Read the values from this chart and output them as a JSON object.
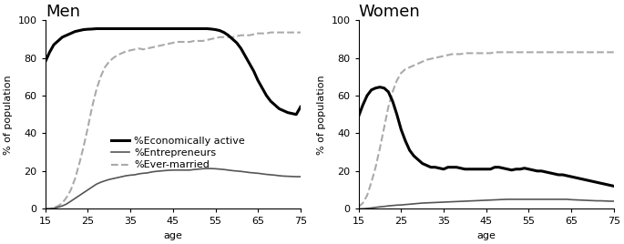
{
  "title_men": "Men",
  "title_women": "Women",
  "ylabel": "% of population",
  "xlabel": "age",
  "xlim": [
    15,
    75
  ],
  "ylim": [
    0,
    100
  ],
  "xticks": [
    15,
    25,
    35,
    45,
    55,
    65,
    75
  ],
  "yticks": [
    0,
    20,
    40,
    60,
    80,
    100
  ],
  "legend_labels": [
    "%Economically active",
    "%Entrepreneurs",
    "%Ever-married"
  ],
  "line_colors_econ": "black",
  "line_colors_entrep": "#555555",
  "line_colors_married": "#aaaaaa",
  "lw_econ": 2.2,
  "lw_entrep": 1.2,
  "lw_married": 1.5,
  "men_econ_active_ages": [
    15,
    16,
    17,
    18,
    19,
    20,
    21,
    22,
    23,
    24,
    25,
    26,
    27,
    28,
    29,
    30,
    31,
    32,
    33,
    34,
    35,
    36,
    37,
    38,
    39,
    40,
    41,
    42,
    43,
    44,
    45,
    46,
    47,
    48,
    49,
    50,
    51,
    52,
    53,
    54,
    55,
    56,
    57,
    58,
    59,
    60,
    61,
    62,
    63,
    64,
    65,
    66,
    67,
    68,
    69,
    70,
    71,
    72,
    73,
    74,
    75
  ],
  "men_econ_active_vals": [
    78,
    83,
    87,
    89,
    91,
    92,
    93,
    94,
    94.5,
    95,
    95.2,
    95.3,
    95.5,
    95.5,
    95.5,
    95.5,
    95.5,
    95.5,
    95.5,
    95.5,
    95.5,
    95.5,
    95.5,
    95.5,
    95.5,
    95.5,
    95.5,
    95.5,
    95.5,
    95.5,
    95.5,
    95.5,
    95.5,
    95.5,
    95.5,
    95.5,
    95.5,
    95.5,
    95.5,
    95.3,
    95,
    94.5,
    93.5,
    92,
    90,
    88,
    85,
    81,
    77,
    73,
    68,
    64,
    60,
    57,
    55,
    53,
    52,
    51,
    50.5,
    50,
    54
  ],
  "men_entrepreneurs_ages": [
    15,
    16,
    17,
    18,
    19,
    20,
    21,
    22,
    23,
    24,
    25,
    26,
    27,
    28,
    29,
    30,
    31,
    32,
    33,
    34,
    35,
    36,
    37,
    38,
    39,
    40,
    41,
    42,
    43,
    44,
    45,
    46,
    47,
    48,
    49,
    50,
    51,
    52,
    53,
    54,
    55,
    56,
    57,
    58,
    59,
    60,
    61,
    62,
    63,
    64,
    65,
    66,
    67,
    68,
    69,
    70,
    71,
    72,
    73,
    74,
    75
  ],
  "men_entrepreneurs_vals": [
    0,
    0,
    0.3,
    0.8,
    1.5,
    2.5,
    4,
    5.5,
    7,
    8.5,
    10,
    11.5,
    13,
    14,
    14.8,
    15.5,
    16,
    16.5,
    17,
    17.5,
    17.8,
    18,
    18.5,
    18.8,
    19,
    19.5,
    19.8,
    20,
    20.2,
    20.4,
    20.5,
    20.5,
    20.5,
    20.5,
    20.5,
    20.8,
    21,
    21.2,
    21.3,
    21.3,
    21.2,
    21,
    20.8,
    20.5,
    20.2,
    20,
    19.8,
    19.5,
    19.2,
    19,
    18.8,
    18.5,
    18.2,
    18,
    17.8,
    17.5,
    17.3,
    17.2,
    17.1,
    17,
    17
  ],
  "men_ever_married_ages": [
    15,
    16,
    17,
    18,
    19,
    20,
    21,
    22,
    23,
    24,
    25,
    26,
    27,
    28,
    29,
    30,
    31,
    32,
    33,
    34,
    35,
    36,
    37,
    38,
    39,
    40,
    41,
    42,
    43,
    44,
    45,
    46,
    47,
    48,
    49,
    50,
    51,
    52,
    53,
    54,
    55,
    56,
    57,
    58,
    59,
    60,
    61,
    62,
    63,
    64,
    65,
    66,
    67,
    68,
    69,
    70,
    71,
    72,
    73,
    74,
    75
  ],
  "men_ever_married_vals": [
    0,
    0,
    0.5,
    1.5,
    3,
    6,
    10,
    16,
    24,
    33,
    43,
    54,
    63,
    70,
    75,
    78,
    80,
    81.5,
    82.5,
    83.5,
    84,
    84.5,
    85,
    84.5,
    85,
    85.5,
    86,
    86.5,
    87,
    87.5,
    88,
    88.5,
    88.5,
    88.5,
    88.5,
    89,
    89,
    89,
    89.5,
    90,
    90.5,
    91,
    91,
    91,
    91,
    91.5,
    92,
    92,
    92,
    92.5,
    93,
    93,
    93,
    93.5,
    93.5,
    93.5,
    93.5,
    93.5,
    93.5,
    93.5,
    93.5
  ],
  "women_econ_active_ages": [
    15,
    16,
    17,
    18,
    19,
    20,
    21,
    22,
    23,
    24,
    25,
    26,
    27,
    28,
    29,
    30,
    31,
    32,
    33,
    34,
    35,
    36,
    37,
    38,
    39,
    40,
    41,
    42,
    43,
    44,
    45,
    46,
    47,
    48,
    49,
    50,
    51,
    52,
    53,
    54,
    55,
    56,
    57,
    58,
    59,
    60,
    61,
    62,
    63,
    64,
    65,
    66,
    67,
    68,
    69,
    70,
    71,
    72,
    73,
    74,
    75
  ],
  "women_econ_active_vals": [
    49,
    55,
    60,
    63,
    64,
    64.5,
    64,
    62,
    57,
    50,
    42,
    36,
    31,
    28,
    26,
    24,
    23,
    22,
    22,
    21.5,
    21,
    22,
    22,
    22,
    21.5,
    21,
    21,
    21,
    21,
    21,
    21,
    21,
    22,
    22,
    21.5,
    21,
    20.5,
    21,
    21,
    21.5,
    21,
    20.5,
    20,
    20,
    19.5,
    19,
    18.5,
    18,
    18,
    17.5,
    17,
    16.5,
    16,
    15.5,
    15,
    14.5,
    14,
    13.5,
    13,
    12.5,
    12
  ],
  "women_entrepreneurs_ages": [
    15,
    16,
    17,
    18,
    19,
    20,
    21,
    22,
    23,
    24,
    25,
    26,
    27,
    28,
    29,
    30,
    31,
    32,
    33,
    34,
    35,
    36,
    37,
    38,
    39,
    40,
    41,
    42,
    43,
    44,
    45,
    46,
    47,
    48,
    49,
    50,
    51,
    52,
    53,
    54,
    55,
    56,
    57,
    58,
    59,
    60,
    61,
    62,
    63,
    64,
    65,
    66,
    67,
    68,
    69,
    70,
    71,
    72,
    73,
    74,
    75
  ],
  "women_entrepreneurs_vals": [
    0,
    0,
    0.2,
    0.4,
    0.7,
    1,
    1.2,
    1.5,
    1.7,
    1.9,
    2,
    2.2,
    2.4,
    2.6,
    2.8,
    3,
    3.1,
    3.2,
    3.3,
    3.4,
    3.5,
    3.6,
    3.7,
    3.8,
    3.9,
    4,
    4.1,
    4.2,
    4.3,
    4.4,
    4.5,
    4.6,
    4.7,
    4.8,
    4.9,
    5,
    5,
    5,
    5,
    5,
    5,
    5,
    5,
    5,
    5,
    5,
    5,
    5,
    5,
    5,
    4.8,
    4.7,
    4.6,
    4.5,
    4.4,
    4.3,
    4.2,
    4.2,
    4.1,
    4,
    4
  ],
  "women_ever_married_ages": [
    15,
    16,
    17,
    18,
    19,
    20,
    21,
    22,
    23,
    24,
    25,
    26,
    27,
    28,
    29,
    30,
    31,
    32,
    33,
    34,
    35,
    36,
    37,
    38,
    39,
    40,
    41,
    42,
    43,
    44,
    45,
    46,
    47,
    48,
    49,
    50,
    51,
    52,
    53,
    54,
    55,
    56,
    57,
    58,
    59,
    60,
    61,
    62,
    63,
    64,
    65,
    66,
    67,
    68,
    69,
    70,
    71,
    72,
    73,
    74,
    75
  ],
  "women_ever_married_vals": [
    1,
    3,
    7,
    14,
    22,
    32,
    43,
    54,
    62,
    68,
    72,
    74,
    75,
    76,
    77,
    78,
    79,
    79.5,
    80,
    80.5,
    81,
    81.5,
    82,
    82,
    82,
    82.5,
    82.5,
    82.5,
    82.5,
    82.5,
    82.5,
    82.5,
    83,
    83,
    83,
    83,
    83,
    83,
    83,
    83,
    83,
    83,
    83,
    83,
    83,
    83,
    83,
    83,
    83,
    83,
    83,
    83,
    83,
    83,
    83,
    83,
    83,
    83,
    83,
    83,
    83
  ],
  "background_color": "white",
  "title_fontsize": 13,
  "label_fontsize": 8,
  "tick_fontsize": 8,
  "legend_fontsize": 8
}
